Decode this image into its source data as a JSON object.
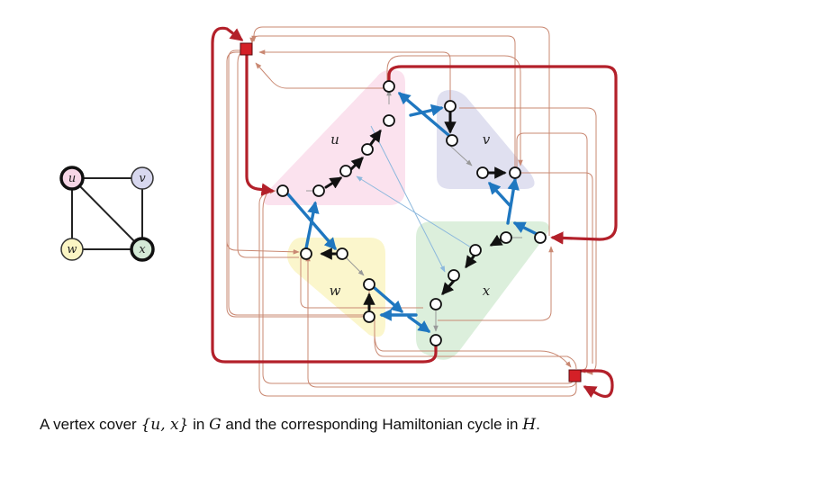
{
  "small_graph": {
    "vertices": [
      {
        "id": "u",
        "label": "u",
        "fill": "#f6d6e6",
        "in_cover": true
      },
      {
        "id": "v",
        "label": "v",
        "fill": "#d8d8ef",
        "in_cover": false
      },
      {
        "id": "w",
        "label": "w",
        "fill": "#fbf5c4",
        "in_cover": false
      },
      {
        "id": "x",
        "label": "x",
        "fill": "#d4ead6",
        "in_cover": true
      }
    ],
    "edges": [
      [
        "u",
        "v"
      ],
      [
        "u",
        "w"
      ],
      [
        "u",
        "x"
      ],
      [
        "v",
        "x"
      ],
      [
        "w",
        "x"
      ]
    ]
  },
  "gadget_labels": {
    "u": "u",
    "v": "v",
    "w": "w",
    "x": "x"
  },
  "colors": {
    "cycle_red": "#b3202a",
    "cycle_blue": "#1f77c0",
    "arrow_black": "#111111",
    "thin_edge": "#c98872",
    "gray_edge": "#aaaaaa",
    "light_blue_edge": "#8cb8dd",
    "region_u": "#fbe2ee",
    "region_v": "#e0e0f0",
    "region_w": "#fbf6cc",
    "region_x": "#dcefdc"
  },
  "caption": {
    "before": "A vertex cover ",
    "set": "{u, x}",
    "middle": " in ",
    "g": "G",
    "after": " and the corresponding Hamiltonian cycle in ",
    "h": "H",
    "end": "."
  }
}
